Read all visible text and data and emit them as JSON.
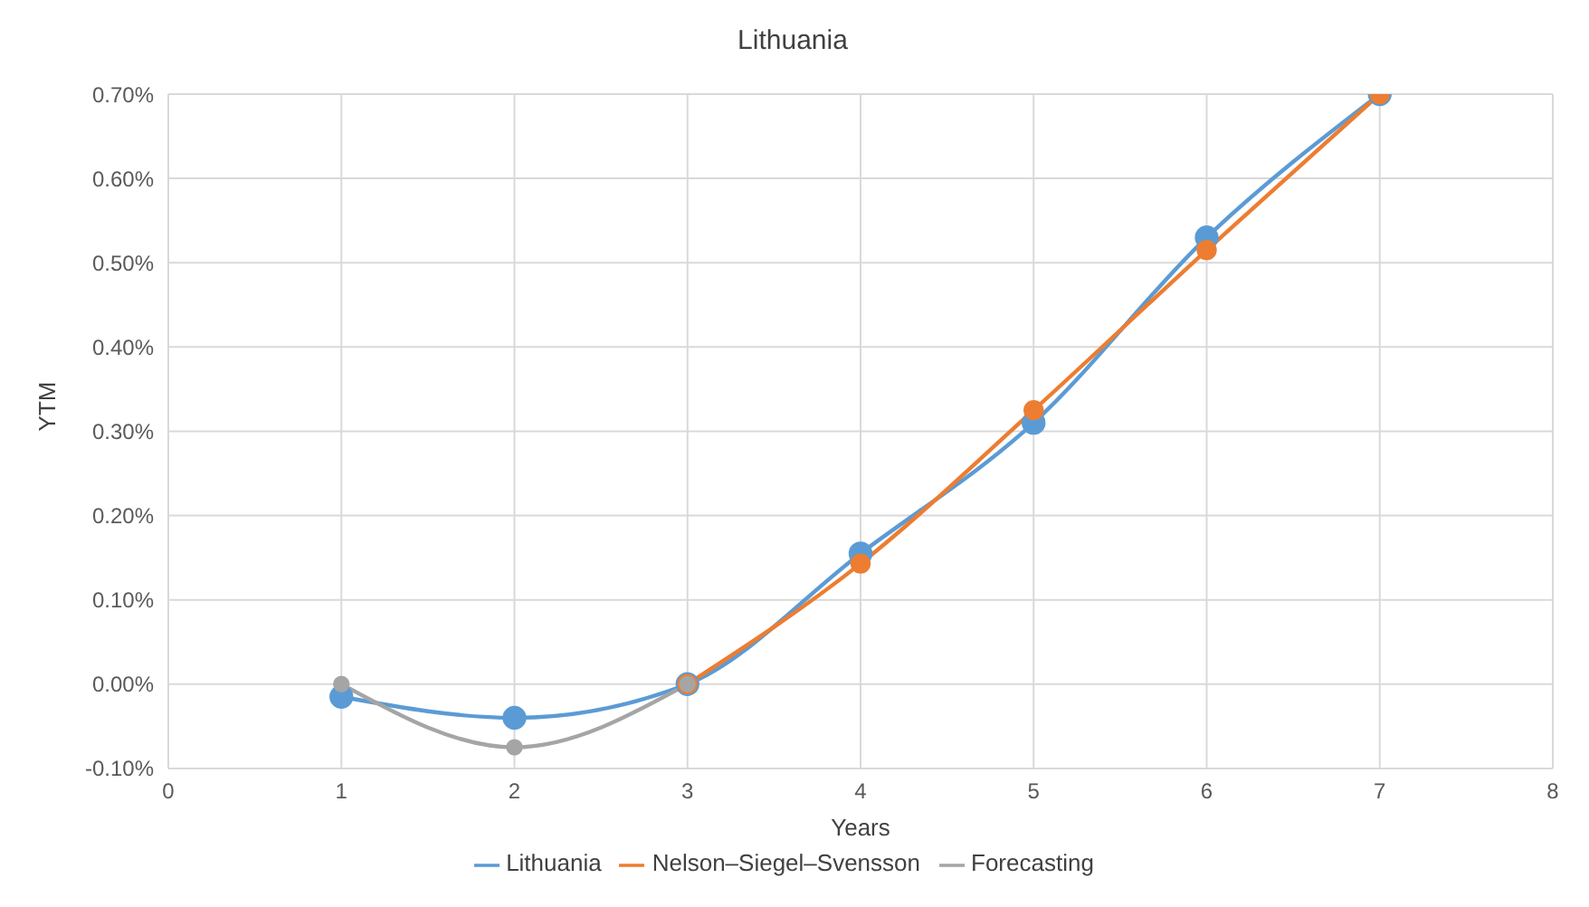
{
  "chart_data": {
    "type": "line",
    "title": "Lithuania",
    "xlabel": "Years",
    "ylabel": "YTM",
    "x": [
      1,
      2,
      3,
      4,
      5,
      6,
      7
    ],
    "series": [
      {
        "name": "Lithuania",
        "color": "#5b9bd5",
        "values": [
          -0.015,
          -0.04,
          0,
          0.155,
          0.31,
          0.53,
          0.7
        ]
      },
      {
        "name": "Nelson–Siegel–Svensson",
        "color": "#ed7d31",
        "values": [
          null,
          null,
          0,
          0.143,
          0.325,
          0.515,
          0.7
        ]
      },
      {
        "name": "Forecasting",
        "color": "#a5a5a5",
        "values": [
          0,
          -0.075,
          0,
          null,
          null,
          null,
          null
        ]
      }
    ],
    "xlim": [
      0,
      8
    ],
    "xticks": [
      0,
      1,
      2,
      3,
      4,
      5,
      6,
      7,
      8
    ],
    "ylim": [
      -0.1,
      0.7
    ],
    "yticks": [
      {
        "value": -0.1,
        "label": "-0.10%"
      },
      {
        "value": 0,
        "label": "0.00%"
      },
      {
        "value": 0.1,
        "label": "0.10%"
      },
      {
        "value": 0.2,
        "label": "0.20%"
      },
      {
        "value": 0.3,
        "label": "0.30%"
      },
      {
        "value": 0.4,
        "label": "0.40%"
      },
      {
        "value": 0.5,
        "label": "0.50%"
      },
      {
        "value": 0.6,
        "label": "0.60%"
      },
      {
        "value": 0.7,
        "label": "0.70%"
      }
    ],
    "grid": true,
    "legend": "bottom",
    "marker": "circle",
    "line_style": "solid"
  }
}
